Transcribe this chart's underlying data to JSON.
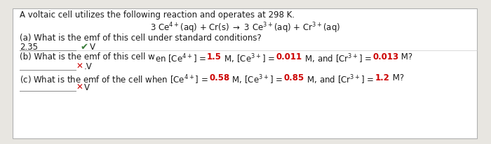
{
  "bg_color": "#e8e6e1",
  "white": "#ffffff",
  "border_color": "#b0b0b0",
  "tc": "#1a1a1a",
  "rc": "#cc0000",
  "gc": "#3a7d3a",
  "fs": 8.5,
  "line1": "A voltaic cell utilizes the following reaction and operates at 298 K.",
  "reaction": "3 Ce$^{4+}$(aq) + Cr(s) $\\rightarrow$ 3 Ce$^{3+}$(aq) + Cr$^{3+}$(aq)",
  "qa_q": "(a) What is the emf of this cell under standard conditions?",
  "qa_ans": "2.35",
  "qb_q1": "(b) What is the emf of this cell w",
  "qb_q2": "en [Ce$^{4+}$] = ",
  "qb_v1": "1.5",
  "qb_q3": " M, [Ce$^{3+}$] = ",
  "qb_v2": "0.011",
  "qb_q4": " M, and [Cr$^{3+}$] = ",
  "qb_v3": "0.013",
  "qb_q5": " M?",
  "qc_q1": "(c) What is the emf of the cell when [Ce$^{4+}$] = ",
  "qc_v1": "0.58",
  "qc_q2": " M, [Ce$^{3+}$] = ",
  "qc_v2": "0.85",
  "qc_q3": " M, and [Cr$^{3+}$] = ",
  "qc_v3": "1.2",
  "qc_q4": " M?"
}
